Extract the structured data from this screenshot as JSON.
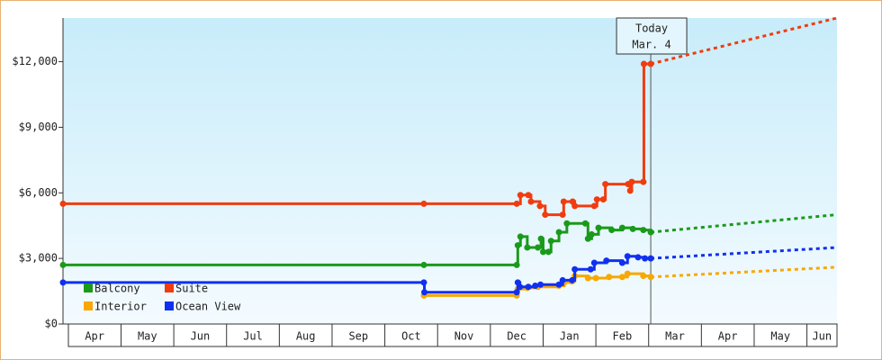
{
  "chart_data": {
    "type": "line",
    "step": true,
    "xlim": [
      -0.1,
      14.57
    ],
    "ylim": [
      0,
      14000
    ],
    "yticks": [
      {
        "value": 0,
        "label": "$0"
      },
      {
        "value": 3000,
        "label": "$3,000"
      },
      {
        "value": 6000,
        "label": "$6,000"
      },
      {
        "value": 9000,
        "label": "$9,000"
      },
      {
        "value": 12000,
        "label": "$12,000"
      }
    ],
    "categories": [
      "Apr",
      "May",
      "Jun",
      "Jul",
      "Aug",
      "Sep",
      "Oct",
      "Nov",
      "Dec",
      "Jan",
      "Feb",
      "Mar",
      "Apr",
      "May",
      "Jun"
    ],
    "annotation": {
      "x": 11.04,
      "lines": [
        "Today",
        "Mar. 4"
      ]
    },
    "series": [
      {
        "name": "Balcony",
        "color": "#1a9a1a",
        "x": [
          -0.1,
          6.74,
          8.5,
          8.52,
          8.57,
          8.7,
          8.9,
          8.96,
          9.0,
          9.1,
          9.15,
          9.3,
          9.45,
          9.8,
          9.85,
          9.92,
          10.05,
          10.3,
          10.5,
          10.7,
          10.9,
          11.04
        ],
        "values": [
          2700,
          2700,
          2700,
          3600,
          4000,
          3500,
          3500,
          3900,
          3300,
          3300,
          3800,
          4200,
          4600,
          4600,
          3900,
          4100,
          4400,
          4300,
          4400,
          4350,
          4300,
          4200
        ],
        "forecast_x": [
          11.04,
          14.57
        ],
        "forecast_values": [
          4200,
          5000
        ]
      },
      {
        "name": "Suite",
        "color": "#f03c0f",
        "x": [
          -0.1,
          6.74,
          8.5,
          8.57,
          8.72,
          8.77,
          8.94,
          9.04,
          9.37,
          9.39,
          9.56,
          9.6,
          9.97,
          10.02,
          10.14,
          10.18,
          10.61,
          10.65,
          10.68,
          10.9,
          10.91,
          11.04
        ],
        "values": [
          5500,
          5500,
          5500,
          5900,
          5900,
          5600,
          5400,
          5000,
          5000,
          5600,
          5600,
          5400,
          5400,
          5700,
          5700,
          6400,
          6400,
          6100,
          6500,
          6500,
          11900,
          11900
        ],
        "forecast_x": [
          11.04,
          14.57
        ],
        "forecast_values": [
          11900,
          14000
        ]
      },
      {
        "name": "Interior",
        "color": "#f8a800",
        "x": [
          6.74,
          8.5,
          8.52,
          8.7,
          8.9,
          9.3,
          9.4,
          9.55,
          9.6,
          9.85,
          10.0,
          10.25,
          10.5,
          10.6,
          10.9,
          11.04
        ],
        "values": [
          1300,
          1300,
          1600,
          1650,
          1700,
          1750,
          1900,
          1950,
          2200,
          2100,
          2100,
          2150,
          2150,
          2300,
          2200,
          2150
        ],
        "forecast_x": [
          11.04,
          14.57
        ],
        "forecast_values": [
          2150,
          2600
        ]
      },
      {
        "name": "Ocean View",
        "color": "#1030f0",
        "x": [
          -0.1,
          6.74,
          6.75,
          8.5,
          8.52,
          8.56,
          8.72,
          8.85,
          8.95,
          9.3,
          9.37,
          9.55,
          9.6,
          9.9,
          9.97,
          10.2,
          10.5,
          10.6,
          10.8,
          10.93,
          11.04
        ],
        "values": [
          1900,
          1900,
          1450,
          1450,
          1900,
          1700,
          1700,
          1750,
          1800,
          1800,
          2000,
          2000,
          2500,
          2500,
          2800,
          2900,
          2800,
          3100,
          3050,
          3000,
          3000
        ],
        "forecast_x": [
          11.04,
          14.57
        ],
        "forecast_values": [
          3000,
          3500
        ]
      }
    ]
  }
}
